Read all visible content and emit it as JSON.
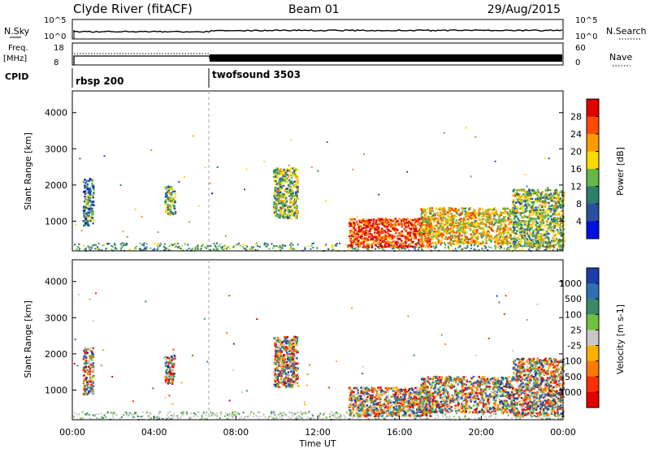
{
  "header": {
    "station": "Clyde River (fitACF)",
    "beam": "Beam 01",
    "date": "29/Aug/2015"
  },
  "top_strips": {
    "nsky_label": "N.Sky",
    "nsky_ticks": [
      "10^5",
      "10^0"
    ],
    "nsearch_label": "N.Search",
    "nsearch_ticks": [
      "10^5",
      "10^0"
    ],
    "freq_label": "Freq.",
    "freq_unit": "[MHz]",
    "freq_ticks": [
      "18",
      "8"
    ],
    "nave_label": "Nave",
    "nave_ticks": [
      "60",
      "0"
    ],
    "cpid_label": "CPID",
    "cpid_segments": [
      {
        "name": "rbsp 200",
        "start_hour": 0.0
      },
      {
        "name": "twofsound 3503",
        "start_hour": 6.6
      }
    ]
  },
  "chart_data": [
    {
      "type": "heatmap",
      "ylabel": "Slant Range [km]",
      "y_ticks": [
        1000,
        2000,
        3000,
        4000
      ],
      "ylim": [
        180,
        4600
      ],
      "x_range_hours": [
        0,
        24
      ],
      "colorbar": {
        "label": "Power [dB]",
        "ticks": [
          "28",
          "24",
          "20",
          "16",
          "12",
          "8",
          "4"
        ],
        "colors": [
          "#e00000",
          "#ff4a00",
          "#ff9a00",
          "#ffd800",
          "#66b84a",
          "#2e7d6e",
          "#2a4fa0",
          "#0010e0"
        ]
      },
      "scatter_regions": [
        {
          "hours": [
            0.5,
            1.0
          ],
          "range_km": [
            900,
            2200
          ],
          "level": 0.3
        },
        {
          "hours": [
            4.5,
            5.0
          ],
          "range_km": [
            1200,
            2000
          ],
          "level": 0.45
        },
        {
          "hours": [
            9.8,
            11.0
          ],
          "range_km": [
            1100,
            2500
          ],
          "level": 0.45
        },
        {
          "hours": [
            13.5,
            17.5
          ],
          "range_km": [
            300,
            1100
          ],
          "level": 0.85
        },
        {
          "hours": [
            17.0,
            21.5
          ],
          "range_km": [
            400,
            1400
          ],
          "level": 0.6
        },
        {
          "hours": [
            21.5,
            24.0
          ],
          "range_km": [
            300,
            1900
          ],
          "level": 0.45
        }
      ]
    },
    {
      "type": "heatmap",
      "ylabel": "Slant Range [km]",
      "y_ticks": [
        1000,
        2000,
        3000,
        4000
      ],
      "ylim": [
        180,
        4600
      ],
      "x_range_hours": [
        0,
        24
      ],
      "colorbar": {
        "label": "Velocity [m s-1]",
        "ticks": [
          "1000",
          "500",
          "100",
          "25",
          "-25",
          "-100",
          "-500",
          "-1000"
        ],
        "colors": [
          "#1a3fa8",
          "#2f6fb0",
          "#3a8a6a",
          "#72c040",
          "#c8c8c8",
          "#ffb000",
          "#ff7a00",
          "#ff3000",
          "#e00000"
        ]
      },
      "scatter_regions": [
        {
          "hours": [
            0.5,
            1.0
          ],
          "range_km": [
            900,
            2200
          ],
          "level": 0.3
        },
        {
          "hours": [
            4.5,
            5.0
          ],
          "range_km": [
            1200,
            2000
          ],
          "level": 0.45
        },
        {
          "hours": [
            9.8,
            11.0
          ],
          "range_km": [
            1100,
            2500
          ],
          "level": 0.45
        },
        {
          "hours": [
            13.5,
            17.5
          ],
          "range_km": [
            300,
            1100
          ],
          "level": 0.85
        },
        {
          "hours": [
            17.0,
            21.5
          ],
          "range_km": [
            400,
            1400
          ],
          "level": 0.6
        },
        {
          "hours": [
            21.5,
            24.0
          ],
          "range_km": [
            300,
            1900
          ],
          "level": 0.45
        }
      ]
    }
  ],
  "x_axis": {
    "ticks": [
      "00:00",
      "04:00",
      "08:00",
      "12:00",
      "16:00",
      "20:00",
      "00:00"
    ],
    "label": "Time UT"
  }
}
